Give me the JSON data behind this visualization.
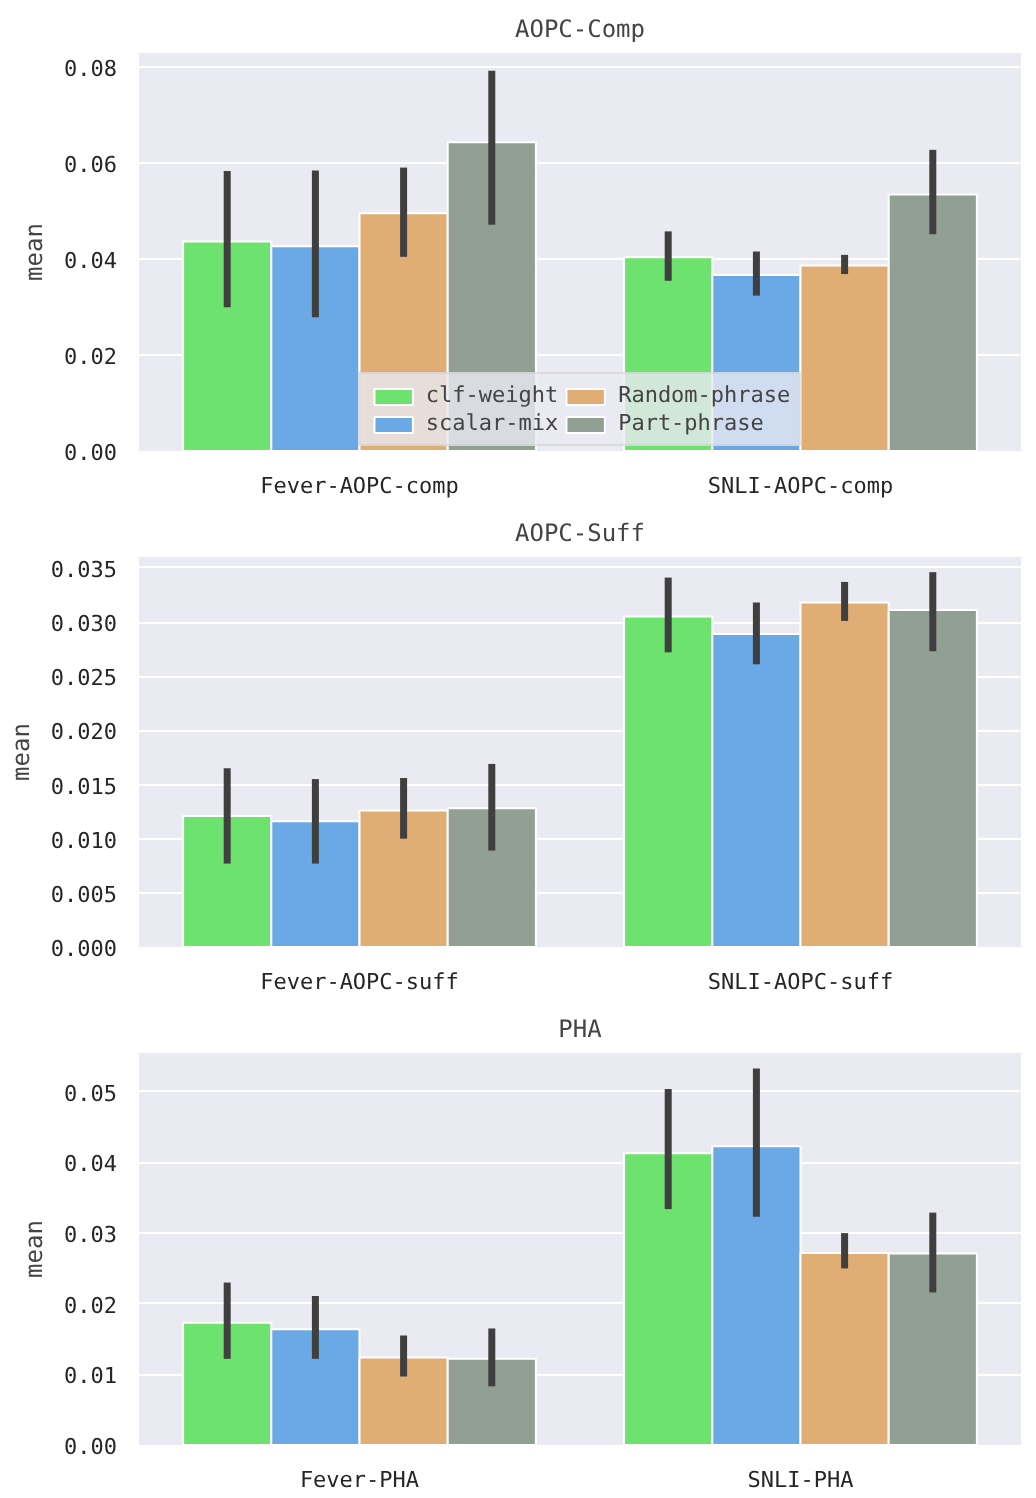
{
  "chart_data": [
    {
      "type": "bar",
      "title": "AOPC-Comp",
      "ylabel": "mean",
      "categories": [
        "Fever-AOPC-comp",
        "SNLI-AOPC-comp"
      ],
      "series": [
        {
          "name": "clf-weight",
          "color": "#6ee26e",
          "values": [
            0.0437,
            0.0404
          ],
          "errors": [
            [
              0.03,
              0.0584
            ],
            [
              0.0355,
              0.0458
            ]
          ]
        },
        {
          "name": "scalar-mix",
          "color": "#6aa8e6",
          "values": [
            0.0427,
            0.0367
          ],
          "errors": [
            [
              0.0279,
              0.0585
            ],
            [
              0.0324,
              0.0416
            ]
          ]
        },
        {
          "name": "Random-phrase",
          "color": "#e0ae74",
          "values": [
            0.0496,
            0.0387
          ],
          "errors": [
            [
              0.0405,
              0.0591
            ],
            [
              0.0369,
              0.0409
            ]
          ]
        },
        {
          "name": "Part-phrase",
          "color": "#92a094",
          "values": [
            0.0644,
            0.0535
          ],
          "errors": [
            [
              0.0472,
              0.0793
            ],
            [
              0.0452,
              0.0628
            ]
          ]
        }
      ],
      "ylim": [
        0,
        0.083
      ],
      "yticks": [
        {
          "value": 0,
          "label": "0.00"
        },
        {
          "value": 0.02,
          "label": "0.02"
        },
        {
          "value": 0.04,
          "label": "0.04"
        },
        {
          "value": 0.06,
          "label": "0.06"
        },
        {
          "value": 0.08,
          "label": "0.08"
        }
      ],
      "grid": "y",
      "legend": "bottom"
    },
    {
      "type": "bar",
      "title": "AOPC-Suff",
      "ylabel": "mean",
      "categories": [
        "Fever-AOPC-suff",
        "SNLI-AOPC-suff"
      ],
      "series": [
        {
          "color": "#6ee26e",
          "values": [
            0.0121,
            0.0305
          ],
          "errors": [
            [
              0.0077,
              0.0165
            ],
            [
              0.0272,
              0.0341
            ]
          ]
        },
        {
          "color": "#6aa8e6",
          "values": [
            0.0116,
            0.0289
          ],
          "errors": [
            [
              0.0077,
              0.0155
            ],
            [
              0.0261,
              0.0318
            ]
          ]
        },
        {
          "color": "#e0ae74",
          "values": [
            0.0126,
            0.0318
          ],
          "errors": [
            [
              0.01,
              0.0156
            ],
            [
              0.0301,
              0.0337
            ]
          ]
        },
        {
          "color": "#92a094",
          "values": [
            0.0128,
            0.0311
          ],
          "errors": [
            [
              0.0089,
              0.0169
            ],
            [
              0.0273,
              0.0346
            ]
          ]
        }
      ],
      "ylim": [
        0,
        0.036
      ],
      "yticks": [
        {
          "value": 0,
          "label": "0.000"
        },
        {
          "value": 0.005,
          "label": "0.005"
        },
        {
          "value": 0.01,
          "label": "0.010"
        },
        {
          "value": 0.015,
          "label": "0.015"
        },
        {
          "value": 0.02,
          "label": "0.020"
        },
        {
          "value": 0.025,
          "label": "0.025"
        },
        {
          "value": 0.03,
          "label": "0.030"
        },
        {
          "value": 0.035,
          "label": "0.035"
        }
      ],
      "grid": "y"
    },
    {
      "type": "bar",
      "title": "PHA",
      "ylabel": "mean",
      "categories": [
        "Fever-PHA",
        "SNLI-PHA"
      ],
      "series": [
        {
          "color": "#6ee26e",
          "values": [
            0.0173,
            0.0413
          ],
          "errors": [
            [
              0.0122,
              0.023
            ],
            [
              0.0334,
              0.0504
            ]
          ]
        },
        {
          "color": "#6aa8e6",
          "values": [
            0.0164,
            0.0423
          ],
          "errors": [
            [
              0.0122,
              0.0211
            ],
            [
              0.0323,
              0.0533
            ]
          ]
        },
        {
          "color": "#e0ae74",
          "values": [
            0.0124,
            0.0272
          ],
          "errors": [
            [
              0.0097,
              0.0155
            ],
            [
              0.025,
              0.03
            ]
          ]
        },
        {
          "color": "#92a094",
          "values": [
            0.0122,
            0.0271
          ],
          "errors": [
            [
              0.0083,
              0.0165
            ],
            [
              0.0216,
              0.0329
            ]
          ]
        }
      ],
      "ylim": [
        0,
        0.0555
      ],
      "yticks": [
        {
          "value": 0,
          "label": "0.00"
        },
        {
          "value": 0.01,
          "label": "0.01"
        },
        {
          "value": 0.02,
          "label": "0.02"
        },
        {
          "value": 0.03,
          "label": "0.03"
        },
        {
          "value": 0.04,
          "label": "0.04"
        },
        {
          "value": 0.05,
          "label": "0.05"
        }
      ],
      "grid": "y"
    }
  ]
}
